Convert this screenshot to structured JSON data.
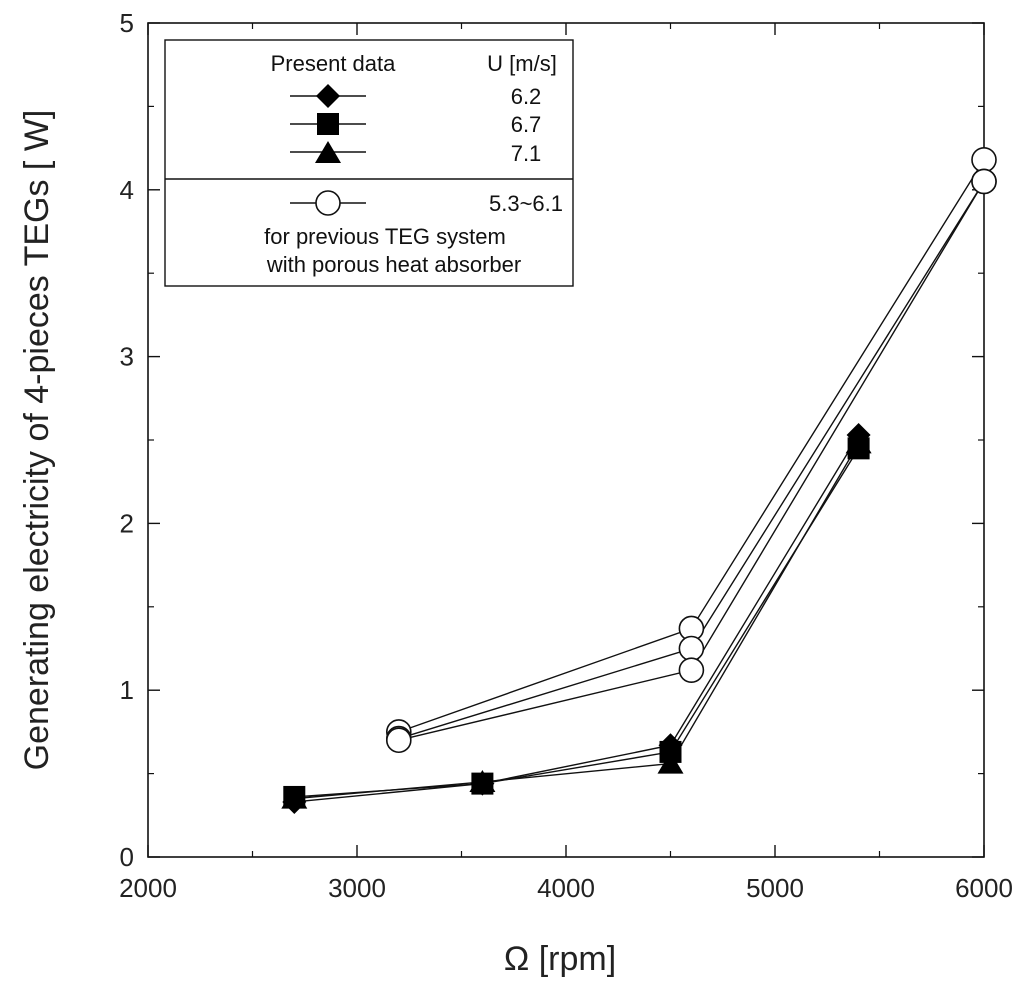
{
  "chart_data": {
    "type": "line",
    "title": "",
    "xlabel": "Ω  [rpm]",
    "ylabel": "Generating electricity of 4-pieces TEGs [ W]",
    "xlim": [
      2000,
      6000
    ],
    "ylim": [
      0,
      5
    ],
    "xticks": [
      2000,
      3000,
      4000,
      5000,
      6000
    ],
    "yticks": [
      0,
      1,
      2,
      3,
      4,
      5
    ],
    "grid": false,
    "legend_position": "top-left",
    "series": [
      {
        "name": "6.2",
        "group": "present",
        "marker": "diamond",
        "filled": true,
        "x": [
          2700,
          3600,
          4500,
          5400
        ],
        "y": [
          0.33,
          0.44,
          0.67,
          2.53
        ]
      },
      {
        "name": "6.7",
        "group": "present",
        "marker": "square",
        "filled": true,
        "x": [
          2700,
          3600,
          4500,
          5400
        ],
        "y": [
          0.36,
          0.44,
          0.63,
          2.45
        ]
      },
      {
        "name": "7.1",
        "group": "present",
        "marker": "triangle",
        "filled": true,
        "x": [
          2700,
          3600,
          4500,
          5400
        ],
        "y": [
          0.35,
          0.45,
          0.56,
          2.48
        ]
      },
      {
        "name": "5.3~6.1 (a)",
        "group": "previous",
        "marker": "circle",
        "filled": false,
        "x": [
          3200,
          4600,
          6000
        ],
        "y": [
          0.75,
          1.37,
          4.18
        ]
      },
      {
        "name": "5.3~6.1 (b)",
        "group": "previous",
        "marker": "circle",
        "filled": false,
        "x": [
          3200,
          4600,
          6000
        ],
        "y": [
          0.71,
          1.25,
          4.05
        ]
      },
      {
        "name": "5.3~6.1 (c)",
        "group": "previous",
        "marker": "circle",
        "filled": false,
        "x": [
          3200,
          4600,
          6000
        ],
        "y": [
          0.7,
          1.12,
          4.05
        ]
      }
    ],
    "legend": {
      "present_header": "Present data",
      "u_header": "U [m/s]",
      "entries": [
        {
          "marker": "diamond",
          "label": "6.2"
        },
        {
          "marker": "square",
          "label": "6.7"
        },
        {
          "marker": "triangle",
          "label": "7.1"
        }
      ],
      "previous_entry": {
        "marker": "circle",
        "label": "5.3~6.1"
      },
      "previous_note_1": "for previous TEG system",
      "previous_note_2": "with porous heat absorber"
    }
  }
}
